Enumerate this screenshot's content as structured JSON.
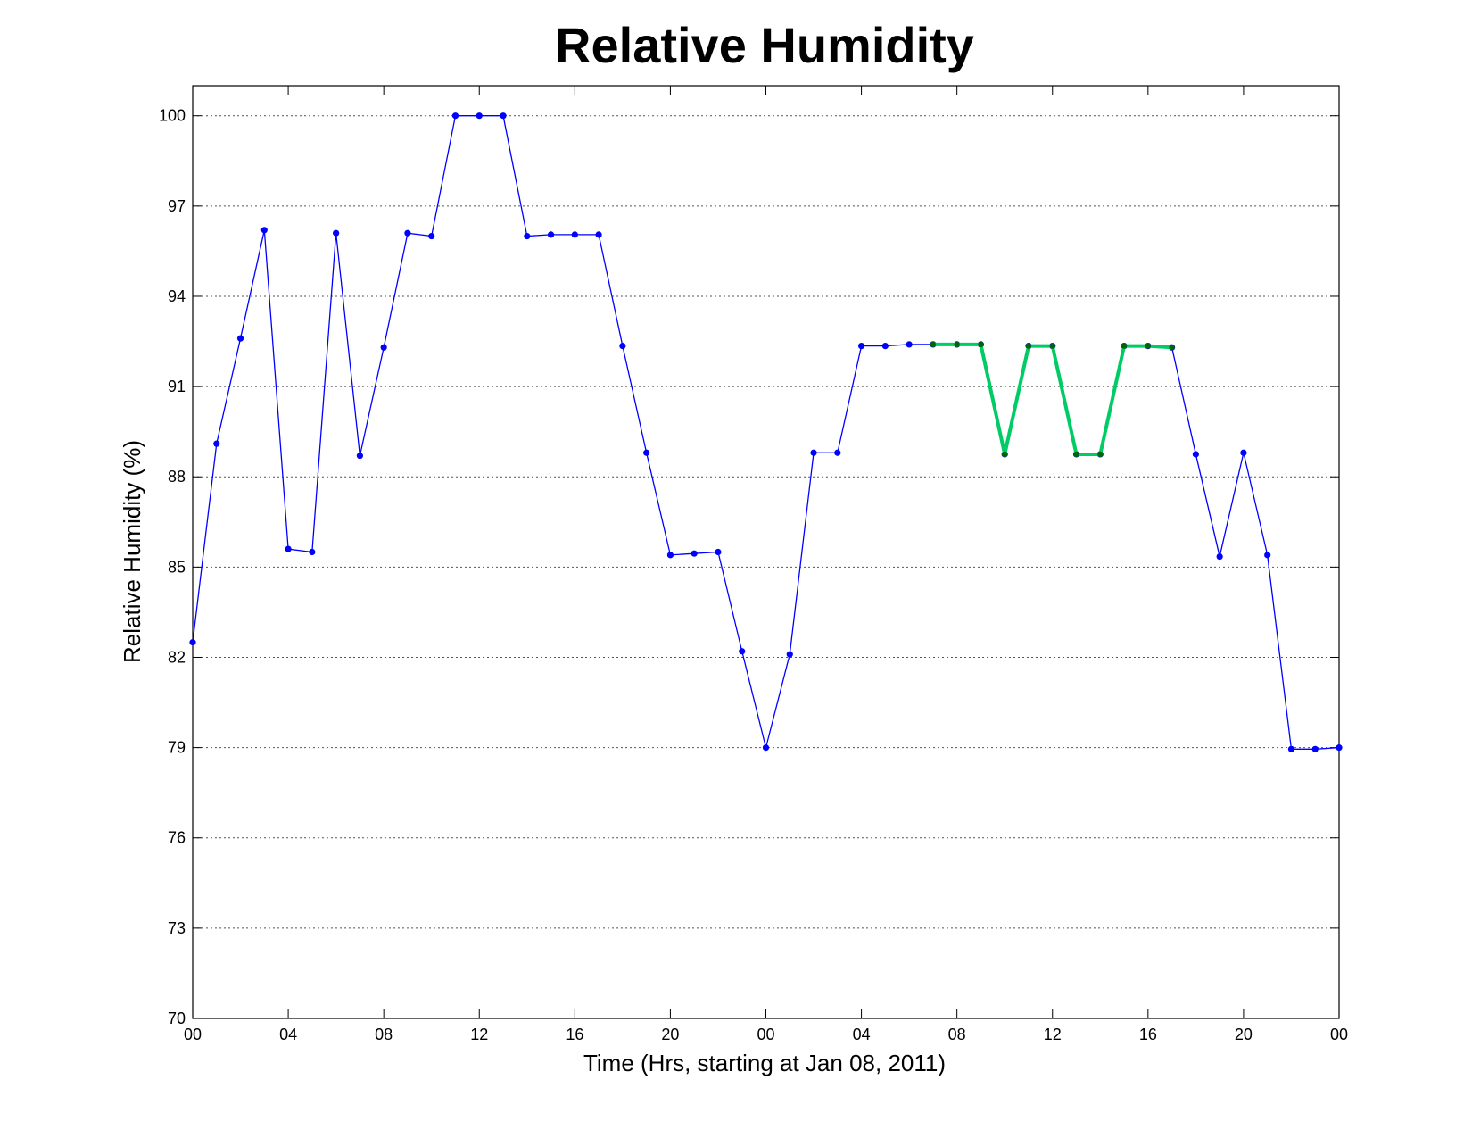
{
  "chart_data": {
    "type": "line",
    "title": "Relative Humidity",
    "xlabel": "Time (Hrs, starting at Jan 08, 2011)",
    "ylabel": "Relative Humidity (%)",
    "x_unit": "hours",
    "xlim": [
      0,
      48
    ],
    "ylim": [
      70,
      101
    ],
    "xticks": [
      0,
      4,
      8,
      12,
      16,
      20,
      24,
      28,
      32,
      36,
      40,
      44,
      48
    ],
    "xtick_labels": [
      "00",
      "04",
      "08",
      "12",
      "16",
      "20",
      "00",
      "04",
      "08",
      "12",
      "16",
      "20",
      "00"
    ],
    "yticks": [
      70,
      73,
      76,
      79,
      82,
      85,
      88,
      91,
      94,
      97,
      100
    ],
    "ytick_labels": [
      "70",
      "73",
      "76",
      "79",
      "82",
      "85",
      "88",
      "91",
      "94",
      "97",
      "100"
    ],
    "grid": "y-dotted",
    "series": [
      {
        "color": "#0000ff",
        "marker_color": "#0000ff",
        "line_width": "thin",
        "x": [
          0,
          1,
          2,
          3,
          4,
          5,
          6,
          7,
          8,
          9,
          10,
          11,
          12,
          13,
          14,
          15,
          16,
          17,
          18,
          19,
          20,
          21,
          22,
          23,
          24,
          25,
          26,
          27,
          28,
          29,
          30,
          31,
          32,
          33,
          34,
          35,
          36,
          37,
          38,
          39,
          40,
          41,
          42,
          43,
          44,
          45,
          46,
          47,
          48
        ],
        "y": [
          82.5,
          89.1,
          92.6,
          96.2,
          85.6,
          85.5,
          96.1,
          88.7,
          92.3,
          96.1,
          96.0,
          100,
          100,
          100,
          96.0,
          96.05,
          96.05,
          96.05,
          92.35,
          88.8,
          85.4,
          85.45,
          85.5,
          82.2,
          79.0,
          82.1,
          88.8,
          88.8,
          92.35,
          92.35,
          92.4,
          92.4,
          92.4,
          92.4,
          88.75,
          92.35,
          92.35,
          88.75,
          88.75,
          92.35,
          92.35,
          92.3,
          88.75,
          85.35,
          88.8,
          85.4,
          78.95,
          78.95,
          79.0
        ]
      },
      {
        "color": "#00cc66",
        "marker_color": "#006600",
        "line_width": "thick",
        "x": [
          31,
          32,
          33,
          34,
          35,
          36,
          37,
          38,
          39,
          40,
          41
        ],
        "y": [
          92.4,
          92.4,
          92.4,
          88.75,
          92.35,
          92.35,
          88.75,
          88.75,
          92.35,
          92.35,
          92.3
        ]
      }
    ]
  }
}
